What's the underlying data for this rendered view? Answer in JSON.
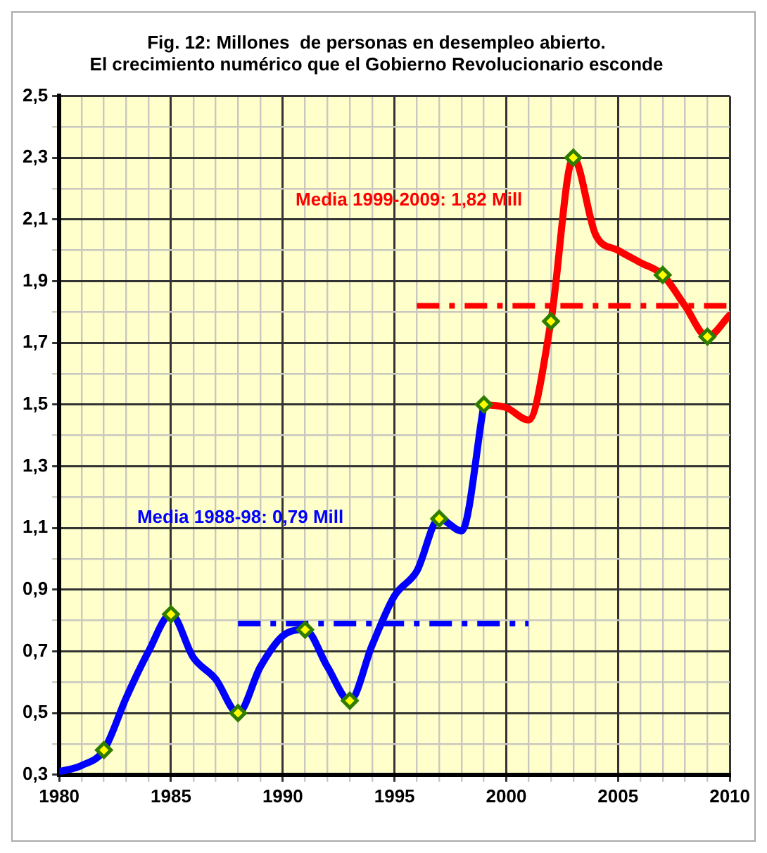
{
  "chart_data": {
    "type": "line",
    "title": "Fig. 12: Millones  de personas en desempleo abierto.\nEl crecimiento numérico que el Gobierno Revolucionario esconde",
    "xlim": [
      1980,
      2010
    ],
    "xticks": [
      1980,
      {
        "value": 1981,
        "label": null
      },
      {
        "value": 1982,
        "label": null
      },
      {
        "value": 1983,
        "label": null
      },
      {
        "value": 1984,
        "label": null
      },
      1985,
      {
        "value": 1986,
        "label": null
      },
      {
        "value": 1987,
        "label": null
      },
      {
        "value": 1988,
        "label": null
      },
      {
        "value": 1989,
        "label": null
      },
      1990,
      {
        "value": 1991,
        "label": null
      },
      {
        "value": 1992,
        "label": null
      },
      {
        "value": 1993,
        "label": null
      },
      {
        "value": 1994,
        "label": null
      },
      1995,
      {
        "value": 1996,
        "label": null
      },
      {
        "value": 1997,
        "label": null
      },
      {
        "value": 1998,
        "label": null
      },
      {
        "value": 1999,
        "label": null
      },
      2000,
      {
        "value": 2001,
        "label": null
      },
      {
        "value": 2002,
        "label": null
      },
      {
        "value": 2003,
        "label": null
      },
      {
        "value": 2004,
        "label": null
      },
      2005,
      {
        "value": 2006,
        "label": null
      },
      {
        "value": 2007,
        "label": null
      },
      {
        "value": 2008,
        "label": null
      },
      {
        "value": 2009,
        "label": null
      },
      2010
    ],
    "ylim": [
      0.3,
      2.5
    ],
    "yticks": [
      {
        "value": 0.3,
        "label": "0,3"
      },
      {
        "value": 0.4,
        "label": null
      },
      {
        "value": 0.5,
        "label": "0,5"
      },
      {
        "value": 0.6,
        "label": null
      },
      {
        "value": 0.7,
        "label": "0,7"
      },
      {
        "value": 0.8,
        "label": null
      },
      {
        "value": 0.9,
        "label": "0,9"
      },
      {
        "value": 1.0,
        "label": null
      },
      {
        "value": 1.1,
        "label": "1,1"
      },
      {
        "value": 1.2,
        "label": null
      },
      {
        "value": 1.3,
        "label": "1,3"
      },
      {
        "value": 1.4,
        "label": null
      },
      {
        "value": 1.5,
        "label": "1,5"
      },
      {
        "value": 1.6,
        "label": null
      },
      {
        "value": 1.7,
        "label": "1,7"
      },
      {
        "value": 1.8,
        "label": null
      },
      {
        "value": 1.9,
        "label": "1,9"
      },
      {
        "value": 2.0,
        "label": null
      },
      {
        "value": 2.1,
        "label": "2,1"
      },
      {
        "value": 2.2,
        "label": null
      },
      {
        "value": 2.3,
        "label": "2,3"
      },
      {
        "value": 2.4,
        "label": null
      },
      {
        "value": 2.5,
        "label": "2,5"
      }
    ],
    "grid": true,
    "legend": false,
    "series": [
      {
        "color": "#0000ff",
        "marker": "none",
        "x": [
          1980,
          1981,
          1982,
          1983,
          1984,
          1985,
          1986,
          1987,
          1988,
          1989,
          1990,
          1991,
          1992,
          1993,
          1994,
          1995,
          1996,
          1997,
          1998,
          1999
        ],
        "values": [
          0.31,
          0.33,
          0.38,
          0.55,
          0.7,
          0.82,
          0.68,
          0.61,
          0.5,
          0.65,
          0.75,
          0.77,
          0.65,
          0.54,
          0.72,
          0.88,
          0.96,
          1.13,
          1.09,
          1.5
        ]
      },
      {
        "color": "#ff0000",
        "marker": "none",
        "x": [
          1999,
          2000,
          2001,
          2002,
          2003,
          2004,
          2005,
          2006,
          2007,
          2008,
          2009,
          2010
        ],
        "values": [
          1.5,
          1.49,
          1.45,
          1.77,
          2.3,
          2.05,
          2.0,
          1.96,
          1.92,
          1.82,
          1.72,
          1.79
        ]
      },
      {
        "name": "Media 1988-98: 0,79 Mill",
        "color": "#0000ff",
        "marker": "none",
        "line_style": "dashed",
        "x": [
          1988,
          2001
        ],
        "values": [
          0.79,
          0.79
        ]
      },
      {
        "name": "Media 1999-2009: 1,82 Mill",
        "color": "#ff0000",
        "marker": "none",
        "line_style": "dashed",
        "x": [
          1996,
          2010
        ],
        "values": [
          1.82,
          1.82
        ]
      },
      {
        "type": "scatter",
        "color": "#2e7d00",
        "marker": "diamond",
        "x": [
          1982,
          1985,
          1988,
          1991,
          1993,
          1997,
          1999,
          2002,
          2003,
          2007,
          2009
        ],
        "values": [
          0.38,
          0.82,
          0.5,
          0.77,
          0.54,
          1.13,
          1.5,
          1.77,
          2.3,
          1.92,
          1.72
        ]
      }
    ]
  }
}
